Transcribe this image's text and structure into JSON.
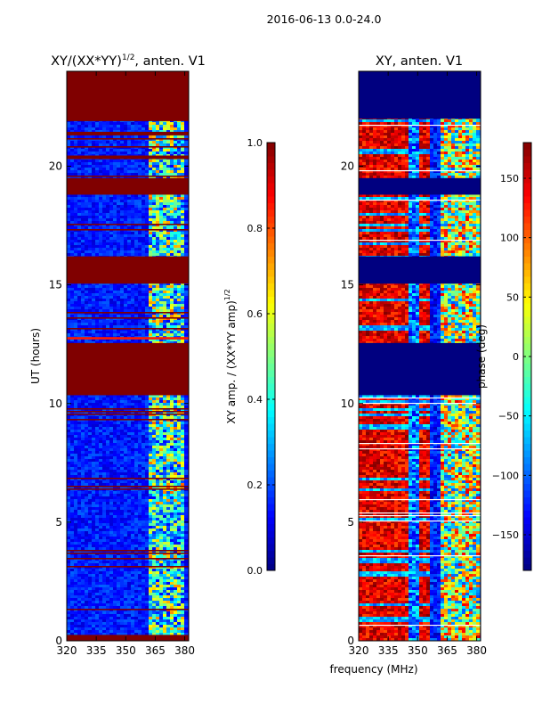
{
  "figure": {
    "suptitle": "2016-06-13 0.0-24.0",
    "xlabel": "frequency (MHz)"
  },
  "chart_data": [
    {
      "type": "heatmap",
      "title_main": "XY/(XX*YY)",
      "title_exp": "1/2",
      "title_suffix": ", anten. V1",
      "ylabel": "UT (hours)",
      "xlim": [
        320,
        382
      ],
      "ylim": [
        0,
        24
      ],
      "xticks": [
        320,
        335,
        350,
        365,
        380
      ],
      "yticks": [
        0,
        5,
        10,
        15,
        20
      ],
      "colormap": "jet",
      "colorbar": {
        "label_main": "XY amp. / (XX*YY amp)",
        "label_exp": "1/2",
        "range": [
          0.0,
          1.0
        ],
        "ticks": [
          "0.0",
          "0.2",
          "0.4",
          "0.6",
          "0.8",
          "1.0"
        ],
        "tick_values": [
          0.0,
          0.2,
          0.4,
          0.6,
          0.8,
          1.0
        ]
      },
      "bands": [
        {
          "t0": 0.0,
          "t1": 0.25,
          "value": 1.0
        },
        {
          "t0": 10.35,
          "t1": 12.55,
          "value": 1.0
        },
        {
          "t0": 15.05,
          "t1": 16.2,
          "value": 1.0
        },
        {
          "t0": 18.8,
          "t1": 19.5,
          "value": 1.0
        },
        {
          "t0": 21.9,
          "t1": 24.0,
          "value": 1.0
        },
        {
          "t0": 20.3,
          "t1": 20.45,
          "value": 1.0
        },
        {
          "t0": 21.3,
          "t1": 21.45,
          "value": 1.0
        },
        {
          "t0": 12.7,
          "t1": 12.8,
          "value": 0.85
        }
      ]
    },
    {
      "type": "heatmap",
      "title_main": "XY, anten. V1",
      "title_exp": "",
      "title_suffix": "",
      "ylabel": "",
      "xlim": [
        320,
        382
      ],
      "ylim": [
        0,
        24
      ],
      "xticks": [
        320,
        335,
        350,
        365,
        380
      ],
      "yticks": [
        0,
        5,
        10,
        15,
        20
      ],
      "colormap": "jet",
      "colorbar": {
        "label_main": "phase (deg)",
        "label_exp": "",
        "range": [
          -180,
          180
        ],
        "ticks": [
          "−150",
          "−100",
          "−50",
          "0",
          "50",
          "100",
          "150"
        ],
        "tick_values": [
          -150,
          -100,
          -50,
          0,
          50,
          100,
          150
        ]
      },
      "bands": [
        {
          "t0": 10.35,
          "t1": 12.55,
          "value": -180
        },
        {
          "t0": 15.05,
          "t1": 16.2,
          "value": -180
        },
        {
          "t0": 18.8,
          "t1": 19.5,
          "value": -180
        },
        {
          "t0": 22.0,
          "t1": 24.0,
          "value": -180
        }
      ]
    }
  ]
}
